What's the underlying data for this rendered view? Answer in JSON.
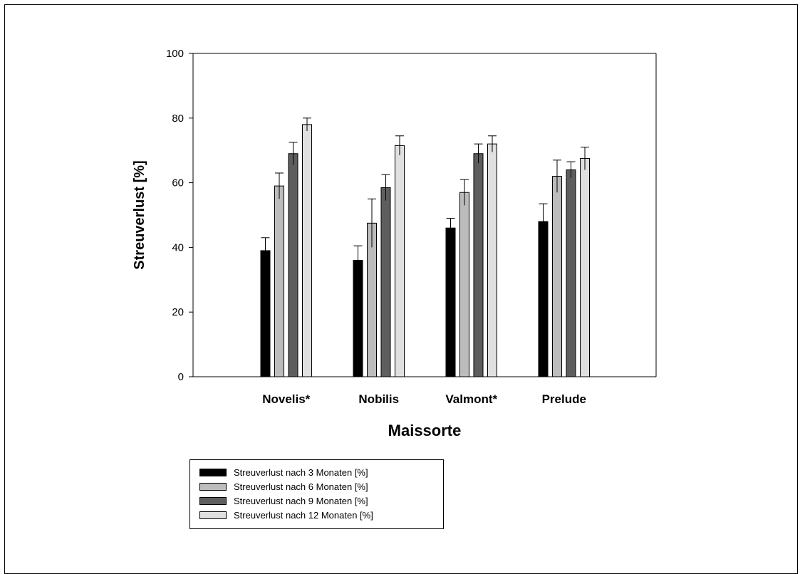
{
  "chart_data": {
    "type": "bar",
    "xlabel": "Maissorte",
    "ylabel": "Streuverlust [%]",
    "ylim": [
      0,
      100
    ],
    "yticks": [
      "0",
      "20",
      "40",
      "60",
      "80",
      "100"
    ],
    "categories": [
      "Novelis*",
      "Nobilis",
      "Valmont*",
      "Prelude"
    ],
    "series": [
      {
        "name": "Streuverlust nach 3 Monaten [%]",
        "color": "#000000",
        "values": [
          39,
          36,
          46,
          48
        ],
        "errors": [
          4,
          4.5,
          3,
          5.5
        ]
      },
      {
        "name": "Streuverlust nach 6 Monaten [%]",
        "color": "#bcbcbc",
        "values": [
          59,
          47.5,
          57,
          62
        ],
        "errors": [
          4,
          7.5,
          4,
          5
        ]
      },
      {
        "name": "Streuverlust nach 9 Monaten [%]",
        "color": "#5e5e5e",
        "values": [
          69,
          58.5,
          69,
          64
        ],
        "errors": [
          3.5,
          4,
          3,
          2.5
        ]
      },
      {
        "name": "Streuverlust nach 12 Monaten [%]",
        "color": "#e0e0e0",
        "values": [
          78,
          71.5,
          72,
          67.5
        ],
        "errors": [
          2,
          3,
          2.5,
          3.5
        ]
      }
    ],
    "grid": false,
    "legend_position": "bottom-left"
  }
}
